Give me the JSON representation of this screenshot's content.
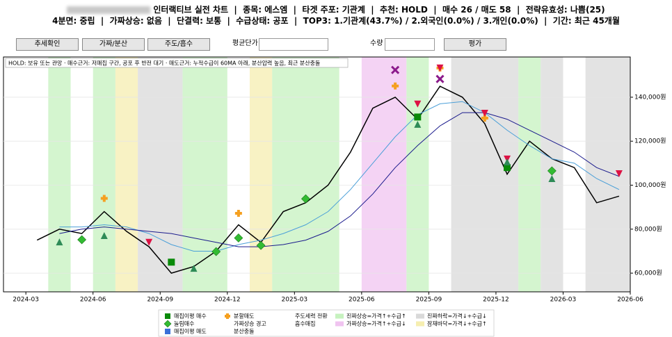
{
  "controls": {
    "buttons": [
      "추세확인",
      "가짜/분산",
      "주도/흡수"
    ],
    "avg_price_label": "평균단가",
    "qty_label": "수량",
    "eval_button": "평가"
  },
  "chart_data": {
    "type": "line",
    "title": "인터랙티브 실전 차트  |  종목: 에스엠  |  타겟 주포: 기관계  |  추천: HOLD  |  매수 26 / 매도 58  |  전략유효성: 나쁨(25)",
    "subtitle": "4분면: 중립  |  가짜상승: 없음  |  단결력: 보통  |  수급상태: 공포  |  TOP3: 1.기관계(43.7%) / 2.외국인(0.0%) / 3.개인(0.0%)  |  기간: 최근 45개월",
    "annotation": "HOLD: 보유 또는 관망  ·  매수근거: 저매집 구간, 공포 후 반전 대기  ·  매도근거: 누적수급이 60MA 아래, 분산압력 높음, 최근 분산충돌",
    "x": [
      "2024-03",
      "2024-04",
      "2024-05",
      "2024-06",
      "2024-07",
      "2024-08",
      "2024-09",
      "2024-10",
      "2024-11",
      "2024-12",
      "2025-01",
      "2025-02",
      "2025-03",
      "2025-04",
      "2025-05",
      "2025-06",
      "2025-07",
      "2025-08",
      "2025-09",
      "2025-10",
      "2025-11",
      "2025-12",
      "2026-01",
      "2026-02",
      "2026-03",
      "2026-04",
      "2026-05"
    ],
    "series": [
      {
        "color": "#000000",
        "values": [
          75000,
          80000,
          78000,
          88000,
          79000,
          72000,
          60000,
          63000,
          70000,
          82000,
          74000,
          88000,
          92000,
          100000,
          115000,
          135000,
          140000,
          130000,
          145000,
          140000,
          128000,
          105000,
          120000,
          112000,
          108000,
          92000,
          95000
        ]
      },
      {
        "color": "#4a9fd8",
        "values": [
          null,
          81000,
          81000,
          82000,
          81000,
          78000,
          73000,
          70000,
          70000,
          73000,
          75000,
          78000,
          82000,
          88000,
          98000,
          110000,
          122000,
          132000,
          137000,
          138000,
          133000,
          125000,
          118000,
          112000,
          110000,
          103000,
          98000
        ]
      },
      {
        "color": "#1a1a8c",
        "values": [
          null,
          78000,
          80000,
          81000,
          80000,
          79000,
          78000,
          76000,
          74000,
          72000,
          72000,
          73000,
          75000,
          79000,
          86000,
          96000,
          108000,
          118000,
          127000,
          133000,
          133000,
          130000,
          125000,
          120000,
          115000,
          108000,
          104000
        ]
      }
    ],
    "markers": [
      {
        "name": "매집이평 매수",
        "color": "#0a8a0a",
        "shape": "square",
        "x": [
          "2024-09",
          "2025-08",
          "2025-12"
        ],
        "values": [
          65000,
          131000,
          108000
        ]
      },
      {
        "name": "눌림매수",
        "color": "#33bb33",
        "shape": "diamond",
        "x": [
          "2024-05",
          "2024-11",
          "2024-12",
          "2025-01",
          "2025-03",
          "2026-02"
        ],
        "values": [
          75200,
          69800,
          76000,
          72600,
          93800,
          106500
        ]
      },
      {
        "name": "매집이평 매도",
        "color": "#3a6fd8",
        "shape": "square",
        "x": [],
        "values": []
      },
      {
        "name": "분할매도",
        "color": "#f5a020",
        "shape": "plus",
        "x": [
          "2024-06",
          "2024-12",
          "2025-07",
          "2025-09",
          "2025-11"
        ],
        "values": [
          94000,
          87200,
          145100,
          153300,
          130500
        ]
      },
      {
        "name": "가짜상승 경고",
        "color": "#dd1144",
        "shape": "tri-down",
        "legend_icon": false,
        "x": [
          "2024-08",
          "2025-08",
          "2025-09",
          "2025-11",
          "2025-12",
          "2026-05"
        ],
        "values": [
          74000,
          136900,
          153300,
          132700,
          111900,
          105200
        ]
      },
      {
        "name": "분산충돌",
        "color": "#8b1a8b",
        "shape": "cross",
        "legend_icon": false,
        "x": [
          "2025-07",
          "2025-09"
        ],
        "values": [
          152400,
          148300
        ]
      },
      {
        "name": "주도세력 전환",
        "color": "#2e8b57",
        "shape": "tri-up",
        "legend_icon": false,
        "x": [
          "2024-04",
          "2024-06",
          "2024-10",
          "2025-08",
          "2025-12",
          "2026-02"
        ],
        "values": [
          74200,
          77100,
          62200,
          127700,
          110600,
          103000
        ]
      },
      {
        "name": "흡수매집",
        "color": "#888888",
        "shape": "circle",
        "legend_icon": false,
        "x": [],
        "values": []
      }
    ],
    "zones": [
      {
        "name": "진짜상승=가격↑+수급↑",
        "color": "#c6f2bf",
        "spans": [
          [
            "2024-04",
            "2024-04"
          ],
          [
            "2024-06",
            "2024-06"
          ],
          [
            "2024-10",
            "2024-11"
          ],
          [
            "2025-02",
            "2025-04"
          ],
          [
            "2025-08",
            "2025-08"
          ],
          [
            "2026-01",
            "2026-01"
          ]
        ]
      },
      {
        "name": "가짜상승=가격↑+수급↓",
        "color": "#f0c4f0",
        "spans": [
          [
            "2025-06",
            "2025-07"
          ]
        ]
      },
      {
        "name": "진짜하락=가격↓+수급↓",
        "color": "#d9d9d9",
        "spans": [
          [
            "2024-08",
            "2024-09"
          ],
          [
            "2025-10",
            "2025-12"
          ],
          [
            "2026-02",
            "2026-02"
          ],
          [
            "2026-04",
            "2026-05"
          ]
        ]
      },
      {
        "name": "잠재바닥=가격↓+수급↑",
        "color": "#f6eeb0",
        "spans": [
          [
            "2024-07",
            "2024-07"
          ],
          [
            "2025-01",
            "2025-01"
          ]
        ]
      }
    ],
    "xlim": [
      "2024-02",
      "2026-06"
    ],
    "xticks": [
      "2024-03",
      "2024-06",
      "2024-09",
      "2024-12",
      "2025-03",
      "2025-06",
      "2025-09",
      "2025-12",
      "2026-03",
      "2026-06"
    ],
    "ylim": [
      51500,
      158300
    ],
    "yticks": [
      {
        "value": 60000,
        "label": "60,000원"
      },
      {
        "value": 80000,
        "label": "80,000원"
      },
      {
        "value": 100000,
        "label": "100,000원"
      },
      {
        "value": 120000,
        "label": "120,000원"
      },
      {
        "value": 140000,
        "label": "140,000원"
      }
    ]
  }
}
